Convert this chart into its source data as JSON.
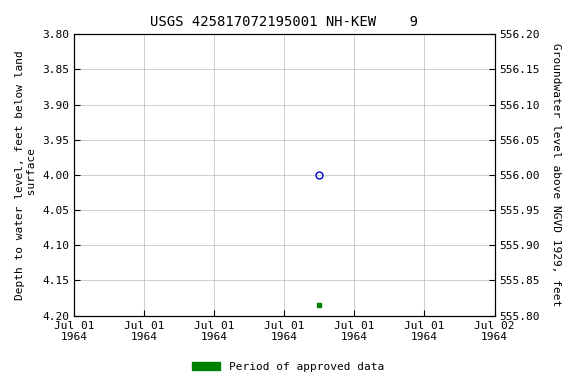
{
  "title": "USGS 425817072195001 NH-KEW    9",
  "ylabel_left": "Depth to water level, feet below land\n surface",
  "ylabel_right": "Groundwater level above NGVD 1929, feet",
  "ylim_left": [
    4.2,
    3.8
  ],
  "ylim_right": [
    555.8,
    556.2
  ],
  "yticks_left": [
    3.8,
    3.85,
    3.9,
    3.95,
    4.0,
    4.05,
    4.1,
    4.15,
    4.2
  ],
  "yticks_right": [
    555.8,
    555.85,
    555.9,
    555.95,
    556.0,
    556.05,
    556.1,
    556.15,
    556.2
  ],
  "data_point_x": 3.5,
  "data_point_y": 4.0,
  "data_point_color": "#0000cc",
  "data_point_marker": "o",
  "data_point_facecolor": "none",
  "data_point2_x": 3.5,
  "data_point2_y": 4.185,
  "data_point2_color": "#008000",
  "data_point2_marker": "s",
  "data_point2_size": 3,
  "background_color": "#ffffff",
  "grid_color": "#bbbbbb",
  "title_fontsize": 10,
  "axis_fontsize": 8,
  "tick_fontsize": 8,
  "legend_label": "Period of approved data",
  "legend_color": "#008000",
  "xlim": [
    0,
    6
  ],
  "xtick_positions": [
    0,
    1,
    2,
    3,
    4,
    5,
    6
  ],
  "xtick_labels": [
    "Jul 01\n1964",
    "Jul 01\n1964",
    "Jul 01\n1964",
    "Jul 01\n1964",
    "Jul 01\n1964",
    "Jul 01\n1964",
    "Jul 02\n1964"
  ]
}
